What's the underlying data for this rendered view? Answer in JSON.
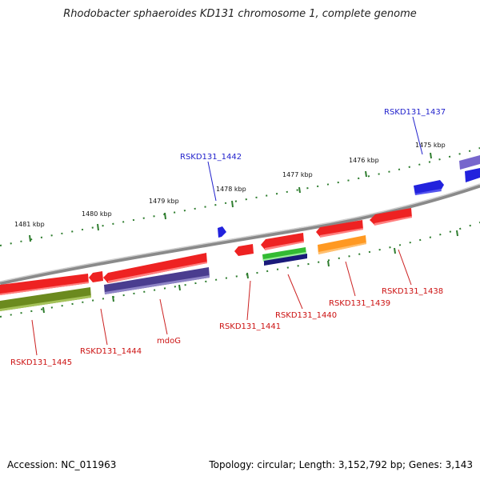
{
  "title": "Rhodobacter sphaeroides KD131 chromosome 1, complete genome",
  "footer": {
    "accession": "Accession: NC_011963",
    "stats": "Topology: circular; Length: 3,152,792 bp; Genes: 3,143"
  },
  "kbp_labels": [
    "1475 kbp",
    "1476 kbp",
    "1477 kbp",
    "1478 kbp",
    "1479 kbp",
    "1480 kbp",
    "1481 kbp"
  ],
  "genes": [
    {
      "id": "RSKD131_1437",
      "strand": "+",
      "color": "#2222dd"
    },
    {
      "id": "RSKD131_1438",
      "strand": "-",
      "color": "#ee2222"
    },
    {
      "id": "RSKD131_1439",
      "strand": "-",
      "color": "#ee2222"
    },
    {
      "id": "RSKD131_1440",
      "strand": "-",
      "color": "#ee2222"
    },
    {
      "id": "RSKD131_1441",
      "strand": "-",
      "color": "#ee2222"
    },
    {
      "id": "RSKD131_1442",
      "strand": "+",
      "color": "#2222dd"
    },
    {
      "id": "mdoG",
      "strand": "-",
      "color": "#ee2222"
    },
    {
      "id": "RSKD131_1444",
      "strand": "-",
      "color": "#ee2222"
    },
    {
      "id": "RSKD131_1445",
      "strand": "-",
      "color": "#ee2222"
    }
  ],
  "colors": {
    "backbone": "#8a8a8a",
    "tick": "#2e7d2e",
    "gene_forward": "#2222dd",
    "gene_reverse": "#ee2222",
    "cog_purple": "#4a3d8f",
    "cog_olive": "#6b8a1e",
    "cog_green": "#33bb33",
    "cog_orange": "#ff9922",
    "cog_navy": "#1a1a7a",
    "cog_lavender": "#7766cc"
  }
}
